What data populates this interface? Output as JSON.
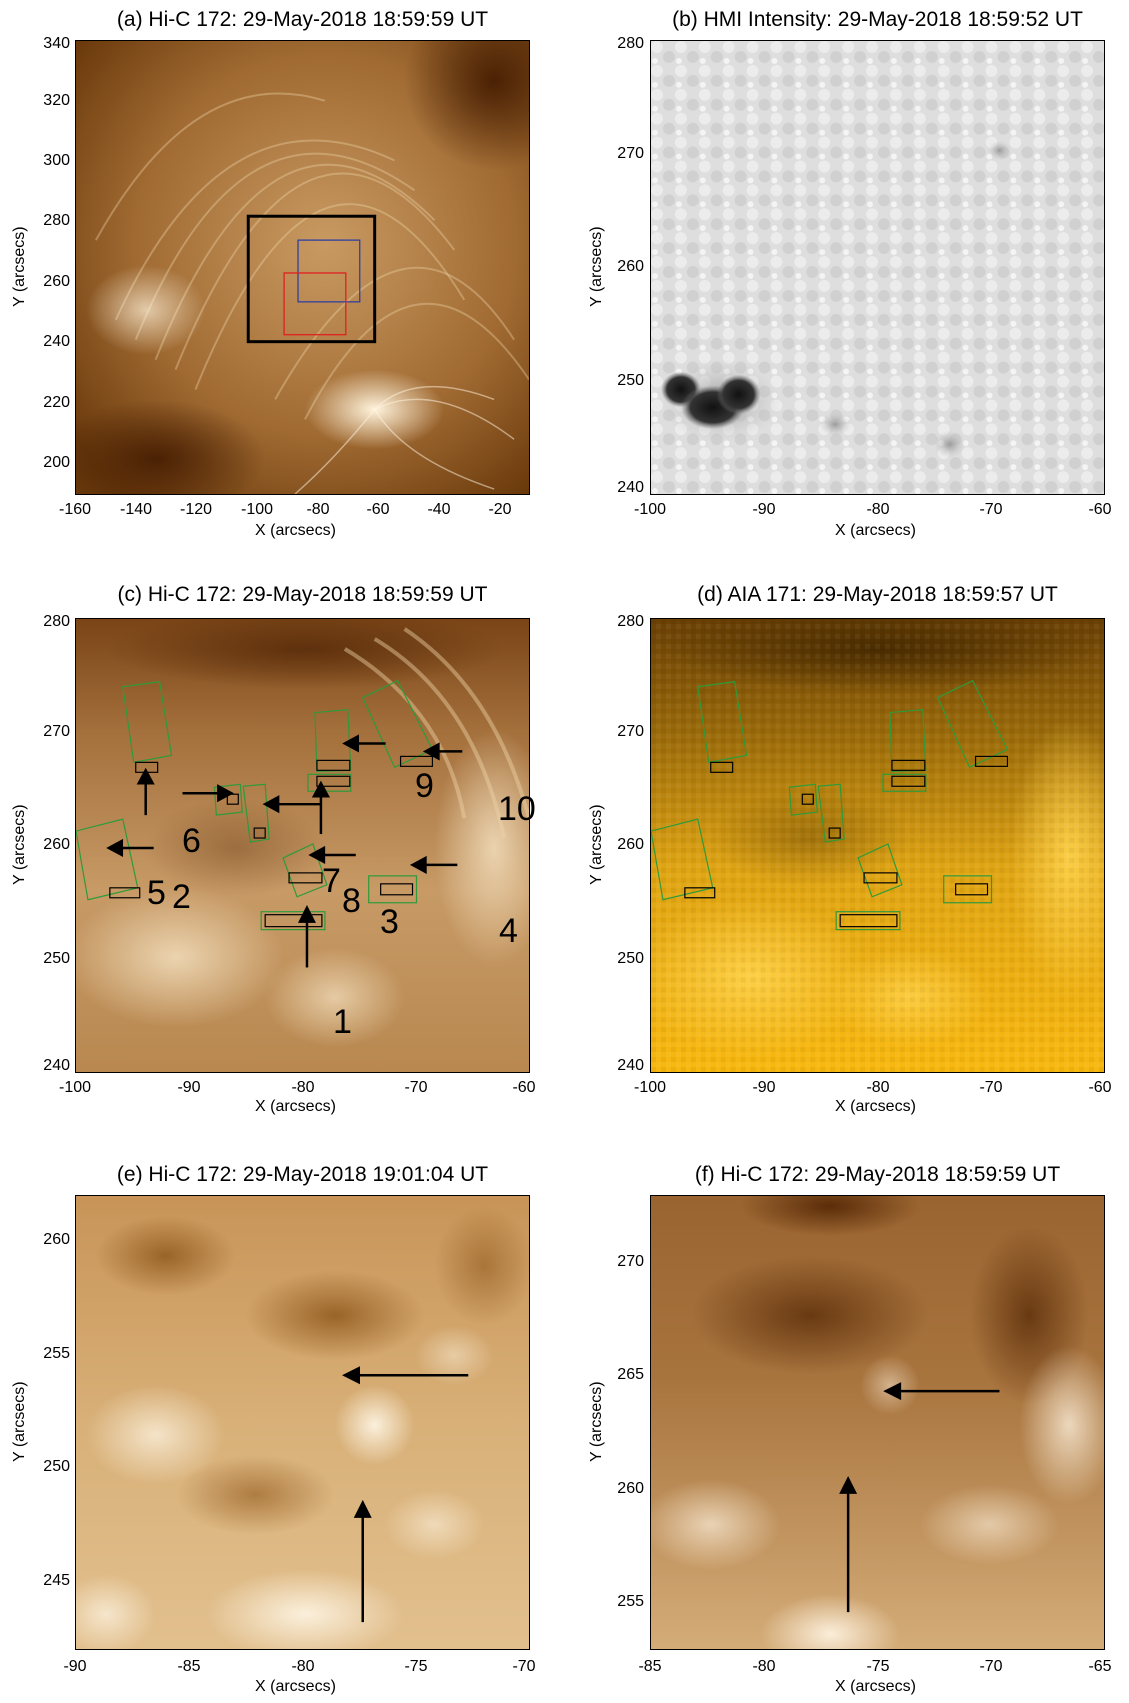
{
  "panels": [
    {
      "title": "(a) Hi-C 172: 29-May-2018 18:59:59 UT",
      "xlabel": "X (arcsecs)",
      "ylabel": "Y (arcsecs)",
      "xticks": [
        "-160",
        "-140",
        "-120",
        "-100",
        "-80",
        "-60",
        "-40",
        "-20"
      ],
      "yticks": [
        "340",
        "320",
        "300",
        "280",
        "260",
        "240",
        "220",
        "200"
      ]
    },
    {
      "title": "(b) HMI Intensity: 29-May-2018 18:59:52 UT",
      "xlabel": "X (arcsecs)",
      "ylabel": "Y (arcsecs)",
      "xticks": [
        "-100",
        "-90",
        "-80",
        "-70",
        "-60"
      ],
      "yticks": [
        "280",
        "270",
        "260",
        "250",
        "240"
      ]
    },
    {
      "title": "(c) Hi-C 172: 29-May-2018 18:59:59 UT",
      "xlabel": "X (arcsecs)",
      "ylabel": "Y (arcsecs)",
      "xticks": [
        "-100",
        "-90",
        "-80",
        "-70",
        "-60"
      ],
      "yticks": [
        "280",
        "270",
        "260",
        "250",
        "240"
      ],
      "labels": [
        "1",
        "2",
        "3",
        "4",
        "5",
        "6",
        "7",
        "8",
        "9",
        "10"
      ]
    },
    {
      "title": "(d) AIA 171: 29-May-2018 18:59:57 UT",
      "xlabel": "X (arcsecs)",
      "ylabel": "Y (arcsecs)",
      "xticks": [
        "-100",
        "-90",
        "-80",
        "-70",
        "-60"
      ],
      "yticks": [
        "280",
        "270",
        "260",
        "250",
        "240"
      ]
    },
    {
      "title": "(e) Hi-C 172: 29-May-2018 19:01:04 UT",
      "xlabel": "X (arcsecs)",
      "ylabel": "Y (arcsecs)",
      "xticks": [
        "-90",
        "-85",
        "-80",
        "-75",
        "-70"
      ],
      "yticks": [
        "260",
        "255",
        "250",
        "245"
      ]
    },
    {
      "title": "(f) Hi-C 172: 29-May-2018 18:59:59 UT",
      "xlabel": "X (arcsecs)",
      "ylabel": "Y (arcsecs)",
      "xticks": [
        "-85",
        "-80",
        "-75",
        "-70",
        "-65"
      ],
      "yticks": [
        "270",
        "265",
        "260",
        "255"
      ]
    }
  ],
  "colors": {
    "hic_dark": "#5a2a06",
    "hic_mid": "#a8733b",
    "hic_light": "#f5e2bf",
    "aia_dark": "#7a4a00",
    "aia_light": "#ffc21a",
    "hmi_bg": "#e0e0e0",
    "box_green": "#2e9a3a",
    "box_red": "#e02020",
    "box_blue": "#3040a0"
  }
}
